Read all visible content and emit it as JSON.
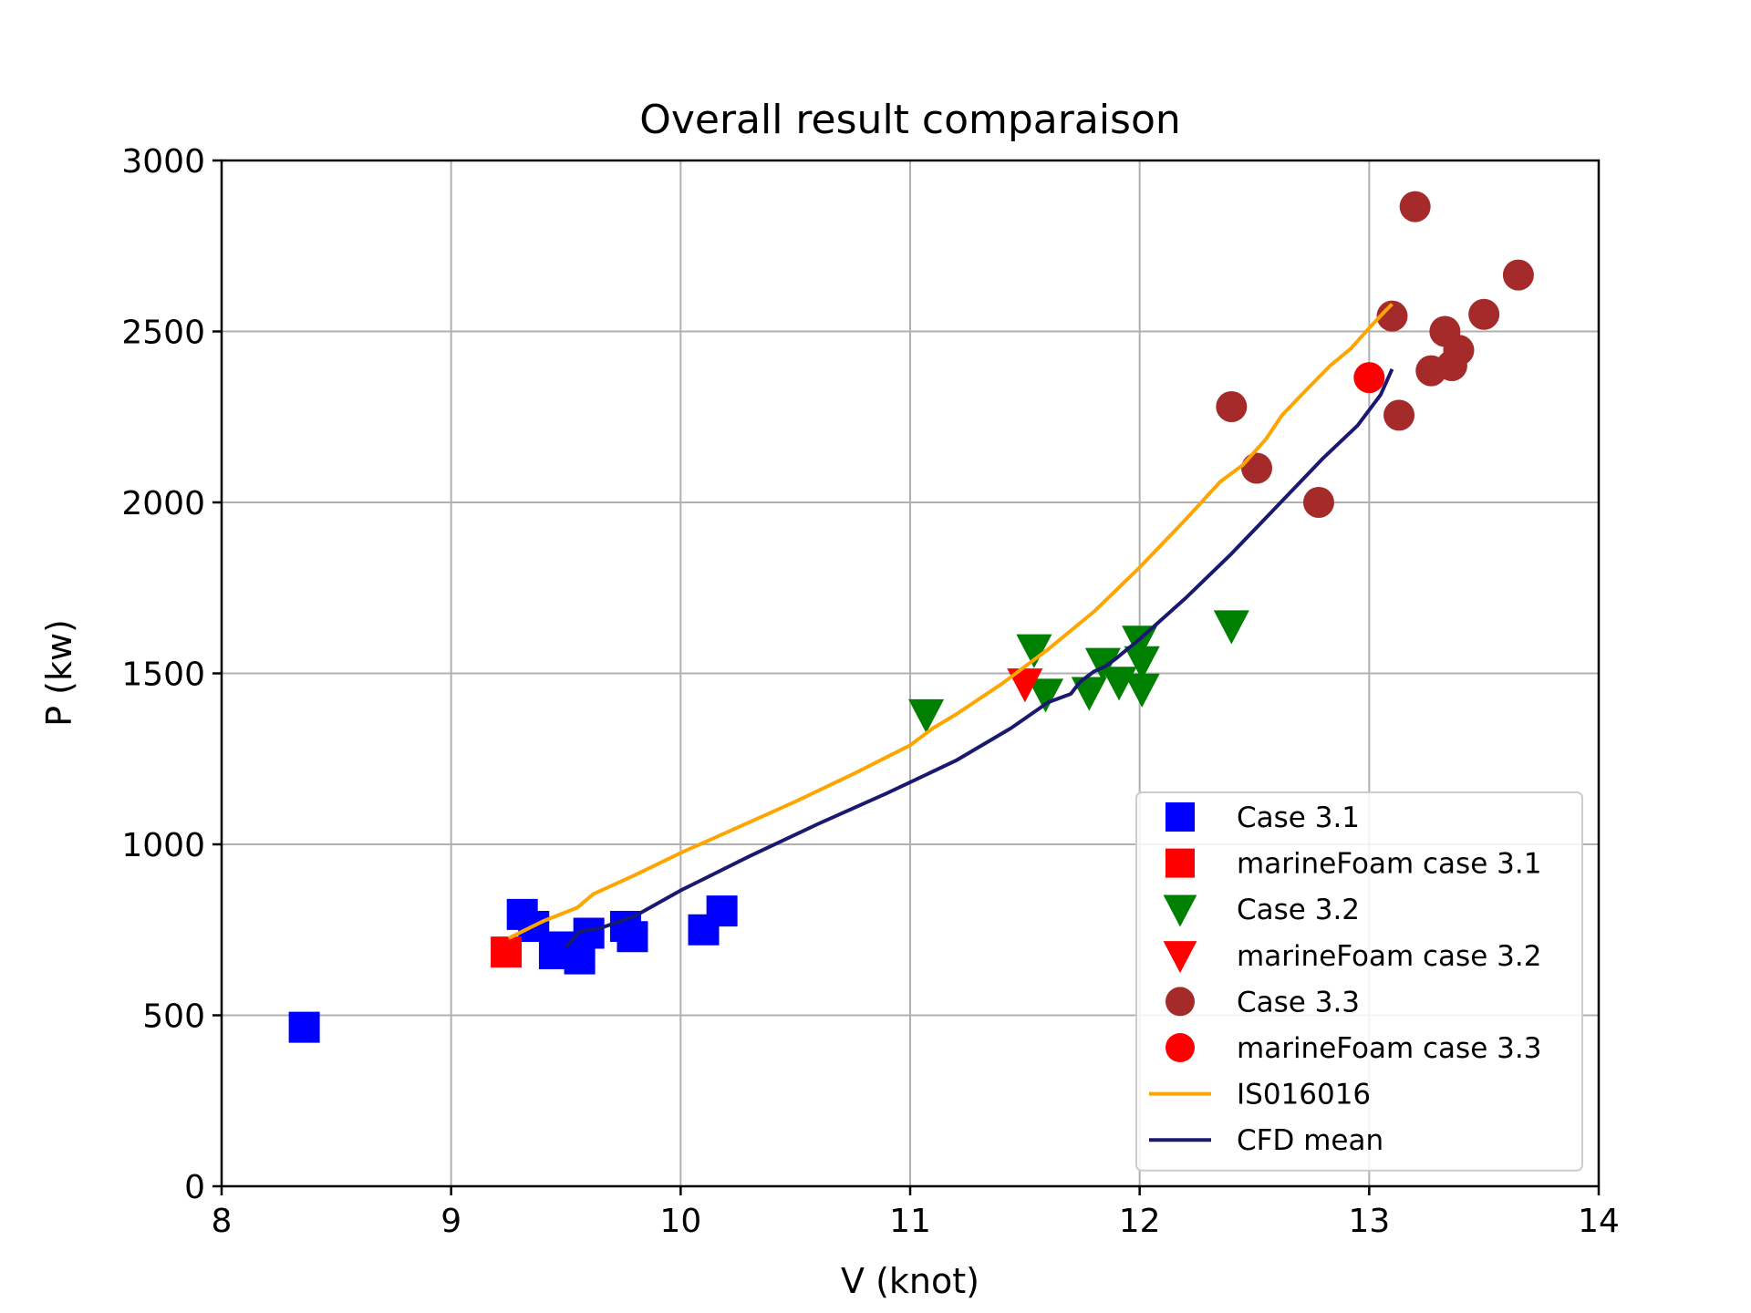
{
  "chart_data": {
    "type": "scatter",
    "title": "Overall result comparaison",
    "xlabel": "V (knot)",
    "ylabel": "P (kw)",
    "xlim": [
      8,
      14
    ],
    "ylim": [
      0,
      3000
    ],
    "xticks": [
      8,
      9,
      10,
      11,
      12,
      13,
      14
    ],
    "yticks": [
      0,
      500,
      1000,
      1500,
      2000,
      2500,
      3000
    ],
    "grid": true,
    "legend_position": "lower-right",
    "series": [
      {
        "name": "Case 3.1",
        "kind": "scatter",
        "marker": "square",
        "color": "#0000ff",
        "points": [
          [
            8.36,
            465
          ],
          [
            9.31,
            795
          ],
          [
            9.36,
            760
          ],
          [
            9.45,
            680
          ],
          [
            9.49,
            700
          ],
          [
            9.56,
            665
          ],
          [
            9.6,
            740
          ],
          [
            9.76,
            760
          ],
          [
            9.79,
            730
          ],
          [
            10.1,
            750
          ],
          [
            10.18,
            805
          ]
        ]
      },
      {
        "name": "marineFoam case 3.1",
        "kind": "scatter",
        "marker": "square",
        "color": "#ff0000",
        "points": [
          [
            9.24,
            685
          ]
        ]
      },
      {
        "name": "Case 3.2",
        "kind": "scatter",
        "marker": "triangle-down",
        "color": "#008000",
        "points": [
          [
            11.07,
            1380
          ],
          [
            11.54,
            1570
          ],
          [
            11.59,
            1440
          ],
          [
            11.78,
            1445
          ],
          [
            11.84,
            1530
          ],
          [
            11.91,
            1475
          ],
          [
            12.0,
            1595
          ],
          [
            12.01,
            1535
          ],
          [
            12.01,
            1455
          ],
          [
            12.4,
            1640
          ]
        ]
      },
      {
        "name": "marineFoam case 3.2",
        "kind": "scatter",
        "marker": "triangle-down",
        "color": "#ff0000",
        "points": [
          [
            11.5,
            1470
          ]
        ]
      },
      {
        "name": "Case 3.3",
        "kind": "scatter",
        "marker": "circle",
        "color": "#a52a2a",
        "points": [
          [
            12.4,
            2280
          ],
          [
            12.51,
            2100
          ],
          [
            12.78,
            2000
          ],
          [
            13.1,
            2545
          ],
          [
            13.13,
            2255
          ],
          [
            13.2,
            2865
          ],
          [
            13.27,
            2385
          ],
          [
            13.33,
            2500
          ],
          [
            13.36,
            2400
          ],
          [
            13.39,
            2445
          ],
          [
            13.5,
            2550
          ],
          [
            13.65,
            2665
          ]
        ]
      },
      {
        "name": "marineFoam case 3.3",
        "kind": "scatter",
        "marker": "circle",
        "color": "#ff0000",
        "points": [
          [
            13.0,
            2365
          ]
        ]
      },
      {
        "name": "IS016016",
        "kind": "line",
        "color": "#ffa500",
        "points": [
          [
            9.25,
            725
          ],
          [
            9.4,
            775
          ],
          [
            9.55,
            815
          ],
          [
            9.62,
            855
          ],
          [
            9.8,
            910
          ],
          [
            10.0,
            975
          ],
          [
            10.25,
            1050
          ],
          [
            10.5,
            1125
          ],
          [
            10.75,
            1205
          ],
          [
            11.0,
            1290
          ],
          [
            11.1,
            1340
          ],
          [
            11.2,
            1380
          ],
          [
            11.4,
            1470
          ],
          [
            11.6,
            1570
          ],
          [
            11.8,
            1680
          ],
          [
            12.0,
            1810
          ],
          [
            12.2,
            1950
          ],
          [
            12.35,
            2060
          ],
          [
            12.45,
            2110
          ],
          [
            12.55,
            2185
          ],
          [
            12.62,
            2255
          ],
          [
            12.72,
            2325
          ],
          [
            12.83,
            2400
          ],
          [
            12.92,
            2450
          ],
          [
            13.0,
            2510
          ],
          [
            13.07,
            2560
          ],
          [
            13.1,
            2580
          ]
        ]
      },
      {
        "name": "CFD mean",
        "kind": "line",
        "color": "#191970",
        "points": [
          [
            9.5,
            700
          ],
          [
            9.56,
            745
          ],
          [
            9.65,
            755
          ],
          [
            9.8,
            790
          ],
          [
            10.0,
            865
          ],
          [
            10.3,
            965
          ],
          [
            10.6,
            1060
          ],
          [
            10.9,
            1150
          ],
          [
            11.2,
            1245
          ],
          [
            11.44,
            1340
          ],
          [
            11.6,
            1415
          ],
          [
            11.7,
            1440
          ],
          [
            11.74,
            1475
          ],
          [
            11.8,
            1505
          ],
          [
            11.85,
            1520
          ],
          [
            11.9,
            1545
          ],
          [
            12.0,
            1600
          ],
          [
            12.2,
            1720
          ],
          [
            12.4,
            1850
          ],
          [
            12.6,
            1990
          ],
          [
            12.8,
            2130
          ],
          [
            12.95,
            2225
          ],
          [
            13.05,
            2315
          ],
          [
            13.1,
            2390
          ]
        ]
      }
    ]
  }
}
